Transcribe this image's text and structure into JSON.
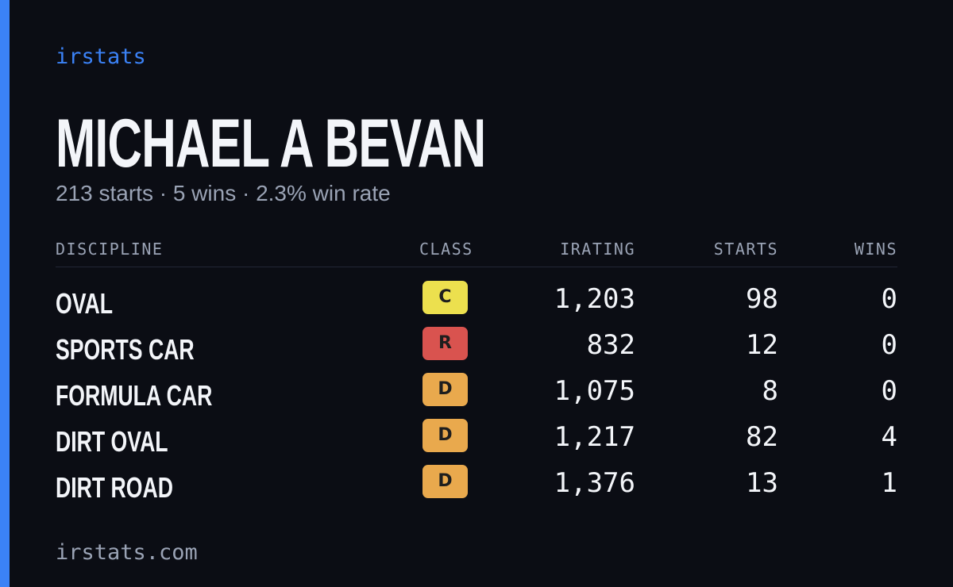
{
  "brand": "irstats",
  "driver": {
    "name": "MICHAEL A BEVAN",
    "summary": "213 starts · 5 wins · 2.3% win rate"
  },
  "table": {
    "headers": [
      "DISCIPLINE",
      "CLASS",
      "IRATING",
      "STARTS",
      "WINS"
    ],
    "rows": [
      {
        "discipline": "OVAL",
        "class": "C",
        "class_color": "#ece04e",
        "irating": "1,203",
        "starts": "98",
        "wins": "0"
      },
      {
        "discipline": "SPORTS CAR",
        "class": "R",
        "class_color": "#d9534f",
        "irating": "832",
        "starts": "12",
        "wins": "0"
      },
      {
        "discipline": "FORMULA CAR",
        "class": "D",
        "class_color": "#e9a94d",
        "irating": "1,075",
        "starts": "8",
        "wins": "0"
      },
      {
        "discipline": "DIRT OVAL",
        "class": "D",
        "class_color": "#e9a94d",
        "irating": "1,217",
        "starts": "82",
        "wins": "4"
      },
      {
        "discipline": "DIRT ROAD",
        "class": "D",
        "class_color": "#e9a94d",
        "irating": "1,376",
        "starts": "13",
        "wins": "1"
      }
    ]
  },
  "footer": "irstats.com"
}
